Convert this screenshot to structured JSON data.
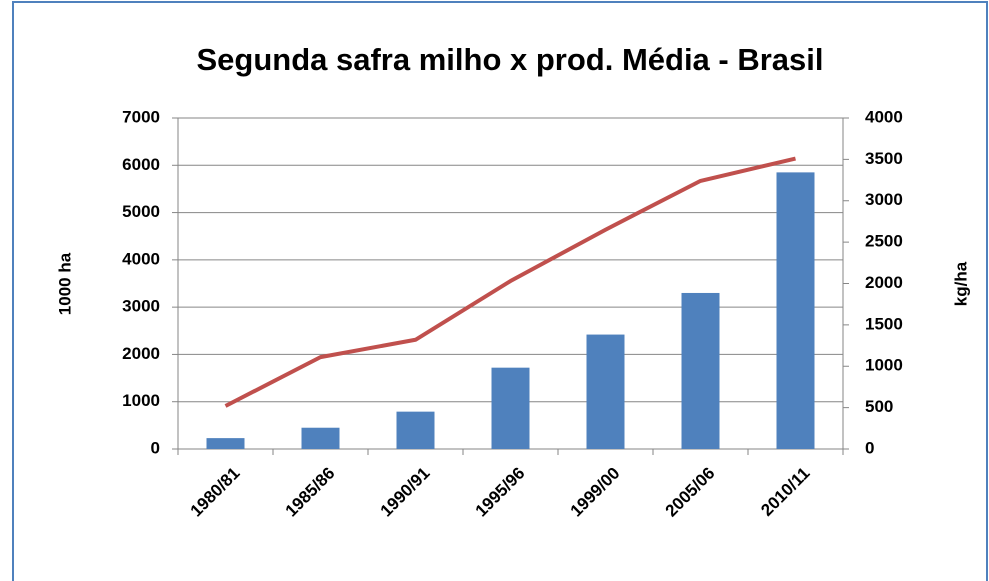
{
  "chart_data": {
    "type": "bar",
    "title": "Segunda safra milho x prod. Média - Brasil",
    "categories": [
      "1980/81",
      "1985/86",
      "1990/91",
      "1995/96",
      "1999/00",
      "2005/06",
      "2010/11"
    ],
    "series": [
      {
        "name": "1000 ha",
        "type": "bar",
        "color": "#4f81bd",
        "values": [
          230,
          450,
          790,
          1720,
          2420,
          3300,
          5850
        ]
      },
      {
        "name": "kg/ha",
        "type": "line",
        "axis": "y2",
        "color": "#c0504d",
        "values": [
          520,
          1110,
          1320,
          2030,
          2650,
          3240,
          3510
        ]
      }
    ],
    "ylabel": "1000 ha",
    "y2label": "kg/ha",
    "ylim": [
      0,
      7000
    ],
    "yticks": [
      0,
      1000,
      2000,
      3000,
      4000,
      5000,
      6000,
      7000
    ],
    "y2lim": [
      0,
      4000
    ],
    "y2ticks": [
      0,
      500,
      1000,
      1500,
      2000,
      2500,
      3000,
      3500,
      4000
    ],
    "grid": true
  }
}
